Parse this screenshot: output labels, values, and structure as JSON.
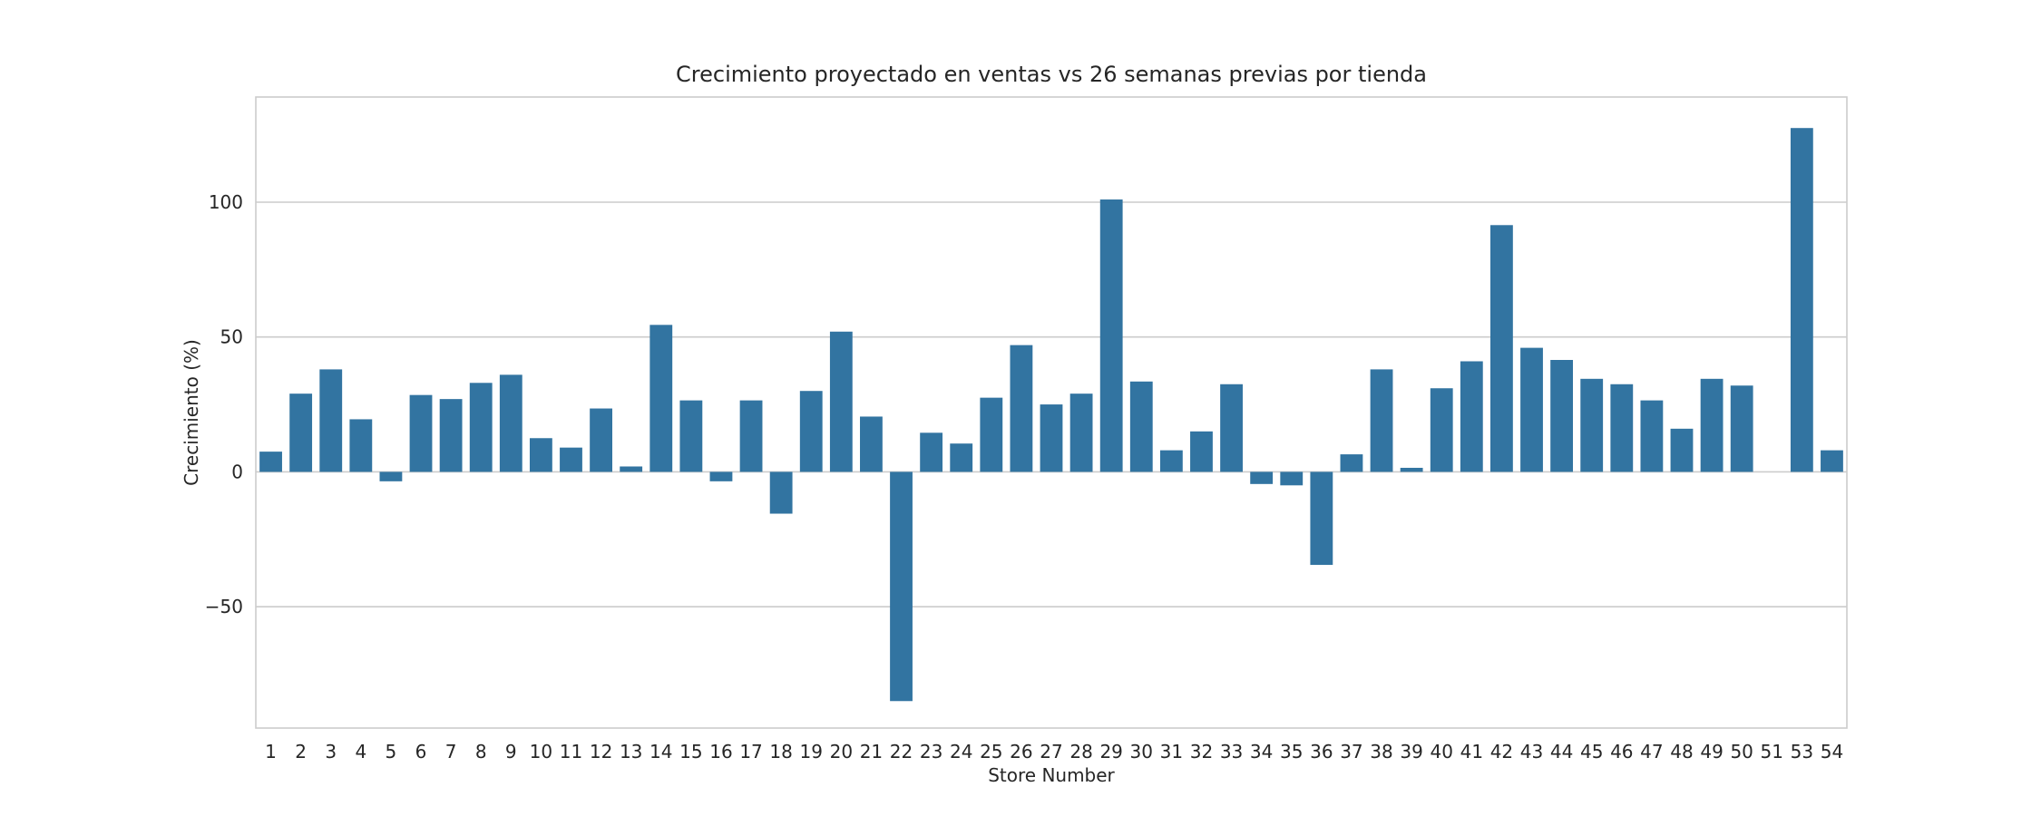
{
  "chart_data": {
    "type": "bar",
    "title": "Crecimiento proyectado en ventas vs 26 semanas previas por tienda",
    "xlabel": "Store Number",
    "ylabel": "Crecimiento (%)",
    "ylim": [
      -95,
      139
    ],
    "yticks": [
      -50,
      0,
      50,
      100
    ],
    "ytick_labels": [
      "−50",
      "0",
      "50",
      "100"
    ],
    "grid": "y",
    "color": "#3274a1",
    "categories": [
      "1",
      "2",
      "3",
      "4",
      "5",
      "6",
      "7",
      "8",
      "9",
      "10",
      "11",
      "12",
      "13",
      "14",
      "15",
      "16",
      "17",
      "18",
      "19",
      "20",
      "21",
      "22",
      "23",
      "24",
      "25",
      "26",
      "27",
      "28",
      "29",
      "30",
      "31",
      "32",
      "33",
      "34",
      "35",
      "36",
      "37",
      "38",
      "39",
      "40",
      "41",
      "42",
      "43",
      "44",
      "45",
      "46",
      "47",
      "48",
      "49",
      "50",
      "51",
      "53",
      "54"
    ],
    "values": [
      7.5,
      29,
      38,
      19.5,
      -3.5,
      28.5,
      27,
      33,
      36,
      12.5,
      9,
      23.5,
      2,
      54.5,
      26.5,
      -3.5,
      26.5,
      -15.5,
      30,
      52,
      20.5,
      -85,
      14.5,
      10.5,
      27.5,
      47,
      25,
      29,
      101,
      33.5,
      8,
      15,
      32.5,
      -4.5,
      -5,
      -34.5,
      6.5,
      38,
      1.5,
      31,
      41,
      91.5,
      46,
      41.5,
      34.5,
      32.5,
      26.5,
      16,
      34.5,
      32,
      0,
      127.5,
      8
    ]
  }
}
